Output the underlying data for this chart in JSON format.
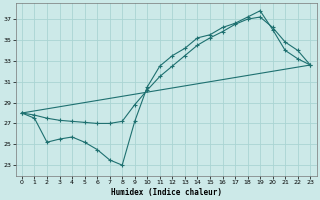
{
  "title": "",
  "xlabel": "Humidex (Indice chaleur)",
  "xlim": [
    -0.5,
    23.5
  ],
  "ylim": [
    22.0,
    38.5
  ],
  "yticks": [
    23,
    25,
    27,
    29,
    31,
    33,
    35,
    37
  ],
  "xticks": [
    0,
    1,
    2,
    3,
    4,
    5,
    6,
    7,
    8,
    9,
    10,
    11,
    12,
    13,
    14,
    15,
    16,
    17,
    18,
    19,
    20,
    21,
    22,
    23
  ],
  "bg_color": "#cce9e8",
  "grid_color": "#aad4d3",
  "line_color": "#1e7070",
  "line1_x": [
    0,
    1,
    2,
    3,
    4,
    5,
    6,
    7,
    8,
    9,
    10,
    11,
    12,
    13,
    14,
    15,
    16,
    17,
    18,
    19,
    20,
    21,
    22,
    23
  ],
  "line1_y": [
    28.0,
    27.5,
    25.2,
    25.5,
    25.7,
    25.2,
    24.5,
    23.5,
    23.0,
    27.2,
    30.5,
    32.5,
    33.5,
    34.2,
    35.2,
    35.5,
    36.2,
    36.6,
    37.2,
    37.8,
    36.0,
    34.0,
    33.2,
    32.6
  ],
  "line2_x": [
    0,
    23
  ],
  "line2_y": [
    28.0,
    32.6
  ],
  "line3_x": [
    0,
    1,
    2,
    3,
    4,
    5,
    6,
    7,
    8,
    9,
    10,
    11,
    12,
    13,
    14,
    15,
    16,
    17,
    18,
    19,
    20,
    21,
    22,
    23
  ],
  "line3_y": [
    28.0,
    27.8,
    27.5,
    27.3,
    27.2,
    27.1,
    27.0,
    27.0,
    27.2,
    28.8,
    30.2,
    31.5,
    32.5,
    33.5,
    34.5,
    35.2,
    35.8,
    36.5,
    37.0,
    37.2,
    36.2,
    34.8,
    34.0,
    32.6
  ]
}
